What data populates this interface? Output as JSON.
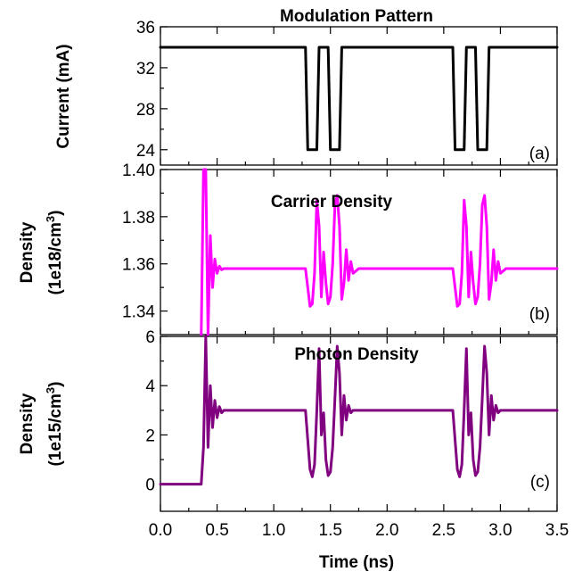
{
  "chart_data": [
    {
      "type": "line",
      "title": "Modulation Pattern",
      "ylabel": "Current (mA)",
      "panel_label": "(a)",
      "ylim": [
        22.5,
        36
      ],
      "yticks": [
        24,
        28,
        32,
        36
      ],
      "ytick_labels": [
        "24",
        "28",
        "32",
        "36"
      ],
      "series": [
        {
          "color": "#000000",
          "x": [
            0.0,
            1.28,
            1.3,
            1.38,
            1.4,
            1.48,
            1.5,
            1.58,
            1.6,
            2.58,
            2.6,
            2.68,
            2.7,
            2.78,
            2.8,
            2.88,
            2.9,
            3.5
          ],
          "y": [
            34,
            34,
            24,
            24,
            34,
            34,
            24,
            24,
            34,
            34,
            24,
            24,
            34,
            34,
            24,
            24,
            34,
            34
          ]
        }
      ]
    },
    {
      "type": "line",
      "title": "Carrier Density",
      "ylabel": "Density",
      "ylabel2": "(1e18/cm",
      "ylabel2_sup": "3",
      "ylabel2_end": ")",
      "panel_label": "(b)",
      "ylim": [
        1.33,
        1.4
      ],
      "yticks": [
        1.34,
        1.36,
        1.38,
        1.4
      ],
      "ytick_labels": [
        "1.34",
        "1.36",
        "1.38",
        "1.40"
      ],
      "series": [
        {
          "color": "#ff00ff",
          "x": [
            0.36,
            0.38,
            0.4,
            0.42,
            0.44,
            0.46,
            0.48,
            0.5,
            0.52,
            0.54,
            0.56,
            0.6,
            1.28,
            1.3,
            1.32,
            1.34,
            1.36,
            1.38,
            1.4,
            1.42,
            1.44,
            1.46,
            1.48,
            1.5,
            1.52,
            1.54,
            1.56,
            1.58,
            1.6,
            1.62,
            1.64,
            1.66,
            1.68,
            1.7,
            1.75,
            2.58,
            2.6,
            2.62,
            2.64,
            2.66,
            2.68,
            2.7,
            2.72,
            2.74,
            2.76,
            2.78,
            2.8,
            2.82,
            2.84,
            2.86,
            2.88,
            2.9,
            2.92,
            2.94,
            2.96,
            2.98,
            3.0,
            3.05,
            3.5
          ],
          "y": [
            1.33,
            1.4,
            1.4,
            1.33,
            1.372,
            1.35,
            1.362,
            1.356,
            1.359,
            1.3575,
            1.358,
            1.358,
            1.358,
            1.35,
            1.342,
            1.343,
            1.356,
            1.387,
            1.376,
            1.346,
            1.365,
            1.352,
            1.343,
            1.346,
            1.36,
            1.385,
            1.389,
            1.376,
            1.345,
            1.352,
            1.366,
            1.353,
            1.361,
            1.356,
            1.358,
            1.358,
            1.35,
            1.342,
            1.343,
            1.356,
            1.387,
            1.376,
            1.346,
            1.365,
            1.352,
            1.343,
            1.346,
            1.36,
            1.385,
            1.389,
            1.376,
            1.345,
            1.352,
            1.366,
            1.353,
            1.361,
            1.356,
            1.358,
            1.358
          ]
        }
      ]
    },
    {
      "type": "line",
      "title": "Photon Density",
      "ylabel": "Density",
      "ylabel2": "(1e15/cm",
      "ylabel2_sup": "3",
      "ylabel2_end": ")",
      "panel_label": "(c)",
      "xlabel": "Time (ns)",
      "ylim": [
        -1.1,
        6
      ],
      "yticks": [
        0,
        2,
        4,
        6
      ],
      "ytick_labels": [
        "0",
        "2",
        "4",
        "6"
      ],
      "xlim": [
        0.0,
        3.5
      ],
      "xticks": [
        0.0,
        0.5,
        1.0,
        1.5,
        2.0,
        2.5,
        3.0,
        3.5
      ],
      "xtick_labels": [
        "0.0",
        "0.5",
        "1.0",
        "1.5",
        "2.0",
        "2.5",
        "3.0",
        "3.5"
      ],
      "series": [
        {
          "color": "#800080",
          "x": [
            0.0,
            0.36,
            0.38,
            0.4,
            0.42,
            0.44,
            0.46,
            0.48,
            0.5,
            0.52,
            0.54,
            0.56,
            0.6,
            1.28,
            1.3,
            1.32,
            1.34,
            1.36,
            1.38,
            1.4,
            1.42,
            1.44,
            1.46,
            1.48,
            1.5,
            1.52,
            1.54,
            1.56,
            1.58,
            1.6,
            1.62,
            1.64,
            1.66,
            1.68,
            1.7,
            1.75,
            2.58,
            2.6,
            2.62,
            2.64,
            2.66,
            2.68,
            2.7,
            2.72,
            2.74,
            2.76,
            2.78,
            2.8,
            2.82,
            2.84,
            2.86,
            2.88,
            2.9,
            2.92,
            2.94,
            2.96,
            2.98,
            3.0,
            3.05,
            3.5
          ],
          "y": [
            0,
            0,
            1.5,
            6,
            1.5,
            4.0,
            2.3,
            3.4,
            2.7,
            3.15,
            2.9,
            3.0,
            3.0,
            3.0,
            1.8,
            0.6,
            0.3,
            0.8,
            3.0,
            5.5,
            2.0,
            2.9,
            1.0,
            0.35,
            0.5,
            1.5,
            3.5,
            5.6,
            4.5,
            2.0,
            3.6,
            2.6,
            3.2,
            2.9,
            3.0,
            3.0,
            3.0,
            1.8,
            0.6,
            0.3,
            0.8,
            3.0,
            5.5,
            2.0,
            2.9,
            1.0,
            0.35,
            0.5,
            1.5,
            3.5,
            5.6,
            4.5,
            2.0,
            3.6,
            2.6,
            3.2,
            2.9,
            3.0,
            3.0,
            3.0
          ]
        }
      ]
    }
  ]
}
